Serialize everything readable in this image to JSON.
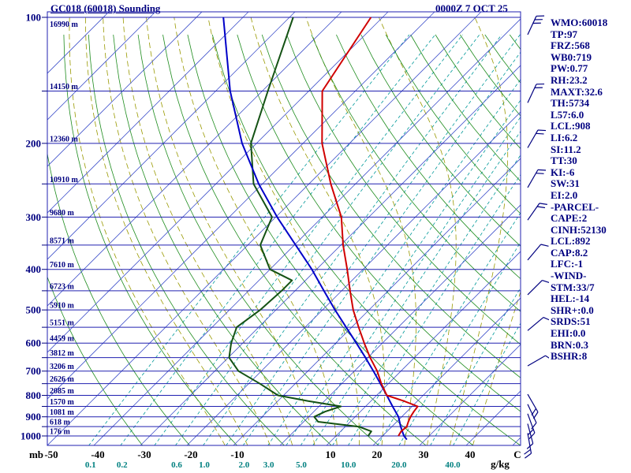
{
  "header": {
    "title": "GC018 (60018) Sounding",
    "datetime": "0000Z  7 OCT 25"
  },
  "colors": {
    "accent_navy": "#000080",
    "isobar": "#2020b0",
    "isotherm": "#4455cc",
    "dry_adiabat": "#1e8c1e",
    "moist_adiabat": "#999900",
    "mixing_ratio": "#009999",
    "temperature": "#d00000",
    "dewpoint": "#145214",
    "parcel": "#0000c8",
    "barb": "#000080"
  },
  "stats": {
    "lines": [
      "WMO:60018",
      "TP:97",
      "FRZ:568",
      "WB0:719",
      "PW:0.77",
      "RH:23.2",
      "MAXT:32.6",
      "TH:5734",
      "L57:6.0",
      "LCL:908",
      "LI:6.2",
      "SI:11.2",
      "TT:30",
      "KI:-6",
      "SW:31",
      "EI:2.0",
      "-PARCEL-",
      "CAPE:2",
      "CINH:52130",
      "LCL:892",
      "CAP:8.2",
      "LFC:-1",
      "-WIND-",
      "STM:33/7",
      "HEL:-14",
      "SHR+:0.0",
      "SRDS:51",
      "EHI:0.0",
      "BRN:0.3",
      "BSHR:8"
    ]
  },
  "wind_barbs": [
    {
      "p": 110,
      "dir": 25,
      "f": 3
    },
    {
      "p": 160,
      "dir": 25,
      "f": 2
    },
    {
      "p": 205,
      "dir": 30,
      "f": 2
    },
    {
      "p": 255,
      "dir": 30,
      "f": 2
    },
    {
      "p": 305,
      "dir": 35,
      "f": 2
    },
    {
      "p": 380,
      "dir": 40,
      "f": 1
    },
    {
      "p": 460,
      "dir": 45,
      "f": 1
    },
    {
      "p": 560,
      "dir": 50,
      "f": 1
    },
    {
      "p": 680,
      "dir": 60,
      "f": 1
    },
    {
      "p": 795,
      "dir": 150,
      "f": 2
    },
    {
      "p": 840,
      "dir": 155,
      "f": 1
    },
    {
      "p": 885,
      "dir": 160,
      "f": 2
    },
    {
      "p": 935,
      "dir": 165,
      "f": 1
    },
    {
      "p": 985,
      "dir": 170,
      "f": 2
    }
  ],
  "chart_data": {
    "type": "line",
    "subtype": "skew-t-log-p-sounding",
    "title": "GC018 (60018) Sounding",
    "datetime": "0000Z  7 OCT 25",
    "x_axis": {
      "unit_left": "mb",
      "unit_temp": "C",
      "unit_ratio": "g/kg",
      "temp_ticks": [
        -50,
        -40,
        -30,
        -20,
        -10,
        10,
        20,
        30,
        40
      ],
      "mixing_ratio_ticks": [
        "0.1",
        "0.2",
        "0.6",
        "1.0",
        "2.0",
        "3.0",
        "5.0",
        "10.0",
        "20.0",
        "40.0"
      ]
    },
    "y_axis": {
      "pressure_ticks": [
        100,
        200,
        300,
        400,
        500,
        600,
        700,
        800,
        900,
        1000
      ],
      "height_labels": [
        {
          "p": 100,
          "label": "16990 m"
        },
        {
          "p": 150,
          "label": "14150 m"
        },
        {
          "p": 200,
          "label": "12360 m"
        },
        {
          "p": 250,
          "label": "10910 m"
        },
        {
          "p": 300,
          "label": "9680 m"
        },
        {
          "p": 350,
          "label": "8571 m"
        },
        {
          "p": 400,
          "label": "7610 m"
        },
        {
          "p": 450,
          "label": "6723 m"
        },
        {
          "p": 500,
          "label": "5910 m"
        },
        {
          "p": 550,
          "label": "5151 m"
        },
        {
          "p": 600,
          "label": "4459 m"
        },
        {
          "p": 650,
          "label": "3812 m"
        },
        {
          "p": 700,
          "label": "3206 m"
        },
        {
          "p": 750,
          "label": "2626 m"
        },
        {
          "p": 800,
          "label": "2085 m"
        },
        {
          "p": 850,
          "label": "1570 m"
        },
        {
          "p": 900,
          "label": "1081 m"
        },
        {
          "p": 950,
          "label": "618 m"
        },
        {
          "p": 1000,
          "label": "176 m"
        }
      ]
    },
    "grid": {
      "isobars_mb": [
        100,
        150,
        200,
        250,
        300,
        350,
        400,
        450,
        500,
        550,
        600,
        650,
        700,
        750,
        800,
        850,
        900,
        950,
        1000
      ],
      "isotherm_step_c": 10,
      "dry_adiabat_theta_k": [
        240,
        250,
        260,
        270,
        280,
        290,
        300,
        310,
        320,
        330,
        340,
        350,
        360,
        370,
        380,
        390,
        400,
        410,
        420,
        430,
        440,
        450
      ],
      "moist_adiabat_surface_temps_c": [
        -15,
        -10,
        -5,
        0,
        5,
        10,
        15,
        20,
        25,
        30,
        35,
        40
      ],
      "mixing_ratio_lines_gkg": [
        0.1,
        0.2,
        0.4,
        0.6,
        1,
        1.5,
        2,
        3,
        4,
        5,
        6,
        8,
        10,
        15,
        20,
        30,
        40
      ]
    },
    "pressure_range_mb": [
      100,
      1055
    ],
    "skew_deg": 45,
    "legend": "none",
    "series": [
      {
        "name": "temperature",
        "color_key": "temperature",
        "points": [
          [
            1000,
            23.4
          ],
          [
            975,
            23.0
          ],
          [
            950,
            23.2
          ],
          [
            925,
            22.5
          ],
          [
            900,
            21.9
          ],
          [
            875,
            21.5
          ],
          [
            850,
            21.2
          ],
          [
            825,
            17.0
          ],
          [
            800,
            12.2
          ],
          [
            750,
            8.5
          ],
          [
            700,
            4.9
          ],
          [
            650,
            0.5
          ],
          [
            600,
            -3.9
          ],
          [
            550,
            -8.5
          ],
          [
            500,
            -13.4
          ],
          [
            450,
            -18.2
          ],
          [
            400,
            -23.4
          ],
          [
            350,
            -29.5
          ],
          [
            300,
            -35.9
          ],
          [
            250,
            -45.3
          ],
          [
            200,
            -55.9
          ],
          [
            150,
            -67.1
          ],
          [
            100,
            -72.5
          ]
        ]
      },
      {
        "name": "dewpoint",
        "color_key": "dewpoint",
        "points": [
          [
            1000,
            16.9
          ],
          [
            975,
            16.6
          ],
          [
            950,
            12.9
          ],
          [
            925,
            3.1
          ],
          [
            900,
            1.2
          ],
          [
            875,
            2.4
          ],
          [
            850,
            4.7
          ],
          [
            825,
            -3.6
          ],
          [
            800,
            -11.2
          ],
          [
            750,
            -17.6
          ],
          [
            700,
            -24.9
          ],
          [
            650,
            -29.8
          ],
          [
            600,
            -32.5
          ],
          [
            550,
            -34.7
          ],
          [
            500,
            -33.4
          ],
          [
            450,
            -32.9
          ],
          [
            425,
            -32.9
          ],
          [
            400,
            -40.0
          ],
          [
            350,
            -47.3
          ],
          [
            300,
            -50.8
          ],
          [
            250,
            -61.9
          ],
          [
            200,
            -71.2
          ],
          [
            150,
            -78.8
          ],
          [
            100,
            -89.2
          ]
        ]
      },
      {
        "name": "parcel",
        "color_key": "parcel",
        "points": [
          [
            1020,
            26.0
          ],
          [
            1000,
            24.6
          ],
          [
            950,
            21.9
          ],
          [
            900,
            19.3
          ],
          [
            850,
            15.8
          ],
          [
            800,
            12.2
          ],
          [
            750,
            8.3
          ],
          [
            700,
            4.1
          ],
          [
            650,
            -0.5
          ],
          [
            600,
            -5.6
          ],
          [
            550,
            -11.2
          ],
          [
            500,
            -17.3
          ],
          [
            450,
            -23.8
          ],
          [
            400,
            -31.0
          ],
          [
            350,
            -39.7
          ],
          [
            300,
            -49.7
          ],
          [
            250,
            -60.8
          ],
          [
            200,
            -73.1
          ],
          [
            150,
            -86.9
          ],
          [
            100,
            -104.2
          ]
        ]
      }
    ]
  }
}
